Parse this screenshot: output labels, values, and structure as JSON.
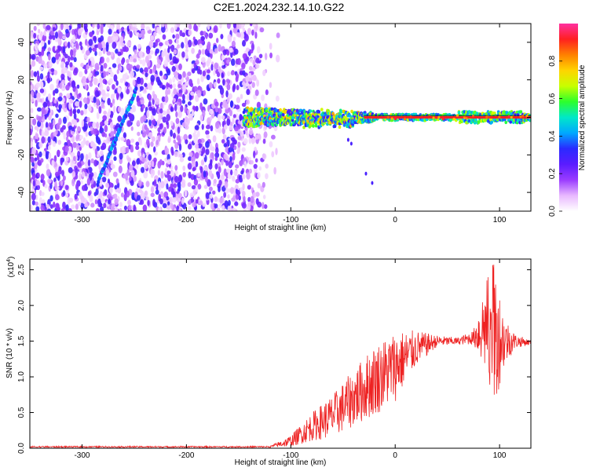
{
  "title": "C2E1.2024.232.14.10.G22",
  "colors": {
    "background": "#ffffff",
    "trace": "#ee2222",
    "axis": "#000000"
  },
  "chart_data": [
    {
      "type": "heatmap",
      "xlabel": "Height of straight line (km)",
      "ylabel": "Frequency (Hz)",
      "xlim": [
        -350,
        130
      ],
      "ylim": [
        -50,
        50
      ],
      "xticks": [
        "-300",
        "-200",
        "-100",
        "0",
        "100"
      ],
      "xtick_values": [
        -300,
        -200,
        -100,
        0,
        100
      ],
      "yticks": [
        "-40",
        "-20",
        "0",
        "20",
        "40"
      ],
      "ytick_values": [
        -40,
        -20,
        0,
        20,
        40
      ],
      "colorbar": {
        "label": "Normalized spectral amplitude",
        "range": [
          0,
          1
        ],
        "ticks": [
          "0.0",
          "0.2",
          "0.4",
          "0.6",
          "0.8"
        ],
        "tick_values": [
          0,
          0.2,
          0.4,
          0.6,
          0.8
        ],
        "colors": [
          "#ffffff",
          "#e8b8ff",
          "#9a3cff",
          "#5a1cff",
          "#2a2aff",
          "#00a8ff",
          "#00e8c8",
          "#2cff2c",
          "#c8ff00",
          "#ffd400",
          "#ff8000",
          "#ff2020",
          "#ff30a0"
        ]
      },
      "features": {
        "noise_region_x": [
          -350,
          -120
        ],
        "diagonal_streak": {
          "x": [
            -285,
            -248
          ],
          "y": [
            -35,
            15
          ]
        },
        "carrier_line_y": 0
      }
    },
    {
      "type": "line",
      "xlabel": "Height of straight line (km)",
      "ylabel": "SNR (10 * v/v)",
      "multiplier_label": "(x10",
      "multiplier_exp": "4",
      "xlim": [
        -350,
        130
      ],
      "ylim": [
        0,
        2.65
      ],
      "xticks": [
        "-300",
        "-200",
        "-100",
        "0",
        "100"
      ],
      "xtick_values": [
        -300,
        -200,
        -100,
        0,
        100
      ],
      "yticks": [
        "0.0",
        "0.5",
        "1.0",
        "1.5",
        "2.0",
        "2.5"
      ],
      "ytick_values": [
        0,
        0.5,
        1.0,
        1.5,
        2.0,
        2.5
      ],
      "envelope": {
        "x": [
          -350,
          -120,
          -100,
          -80,
          -60,
          -40,
          -20,
          0,
          20,
          40,
          60,
          75,
          85,
          95,
          105,
          115,
          130
        ],
        "y": [
          0.02,
          0.02,
          0.1,
          0.3,
          0.45,
          0.7,
          0.95,
          1.15,
          1.4,
          1.5,
          1.5,
          1.55,
          1.7,
          1.6,
          1.5,
          1.5,
          1.48
        ]
      },
      "spread": {
        "x": [
          -350,
          -120,
          -100,
          -80,
          -60,
          -40,
          -20,
          0,
          20,
          40,
          60,
          75,
          85,
          95,
          105,
          115,
          130
        ],
        "y": [
          0.01,
          0.01,
          0.08,
          0.2,
          0.3,
          0.4,
          0.5,
          0.5,
          0.25,
          0.08,
          0.05,
          0.1,
          0.6,
          1.0,
          0.35,
          0.1,
          0.03
        ]
      }
    }
  ]
}
